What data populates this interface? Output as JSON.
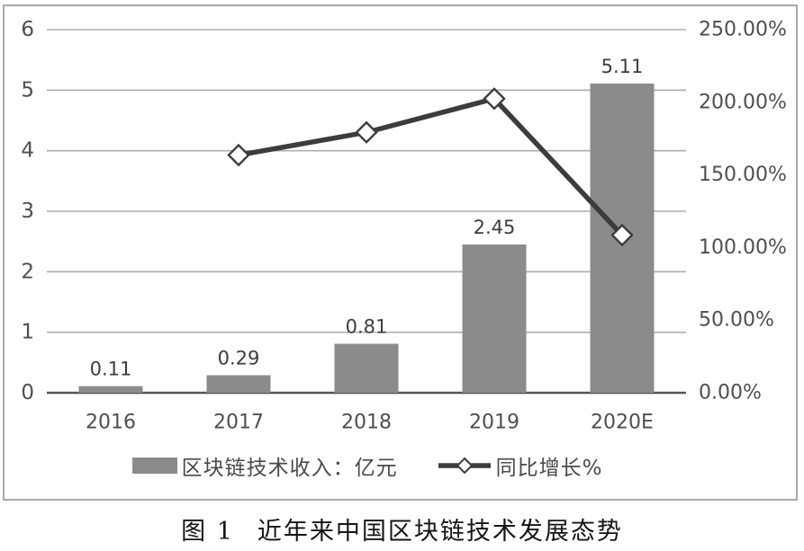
{
  "caption": {
    "label": "图 1",
    "title": "近年来中国区块链技术发展态势"
  },
  "chart_data": {
    "type": "combo-bar-line",
    "categories": [
      "2016",
      "2017",
      "2018",
      "2019",
      "2020E"
    ],
    "series": [
      {
        "name": "区块链技术收入：亿元",
        "type": "bar",
        "axis": "left",
        "values": [
          0.11,
          0.29,
          0.81,
          2.45,
          5.11
        ],
        "data_labels": [
          "0.11",
          "0.29",
          "0.81",
          "2.45",
          "5.11"
        ]
      },
      {
        "name": "同比增长%",
        "type": "line",
        "axis": "right",
        "marker": "diamond",
        "values": [
          null,
          163.64,
          179.31,
          202.47,
          108.57
        ]
      }
    ],
    "axes": {
      "left": {
        "min": 0,
        "max": 6,
        "tick_values": [
          0,
          1,
          2,
          3,
          4,
          5,
          6
        ],
        "tick_labels": [
          "0",
          "1",
          "2",
          "3",
          "4",
          "5",
          "6"
        ]
      },
      "right": {
        "min": 0,
        "max": 250,
        "tick_values": [
          0,
          50,
          100,
          150,
          200,
          250
        ],
        "tick_labels": [
          "0.00%",
          "50.00%",
          "100.00%",
          "150.00%",
          "200.00%",
          "250.00%"
        ]
      }
    },
    "grid": "horizontal",
    "legend_position": "bottom",
    "colors": {
      "bar": "#8b8b8b",
      "line": "#3c3c3c",
      "marker_fill": "#ffffff",
      "marker_stroke": "#3c3c3c",
      "gridline": "#aeaeae",
      "axis_line": "#555555",
      "tick_text": "#4f4f4f",
      "value_label_text": "#3d3d3d",
      "legend_text": "#4a4a4a",
      "frame_border": "#a9a9a9",
      "caption_text": "#151515",
      "background": "#ffffff"
    }
  }
}
